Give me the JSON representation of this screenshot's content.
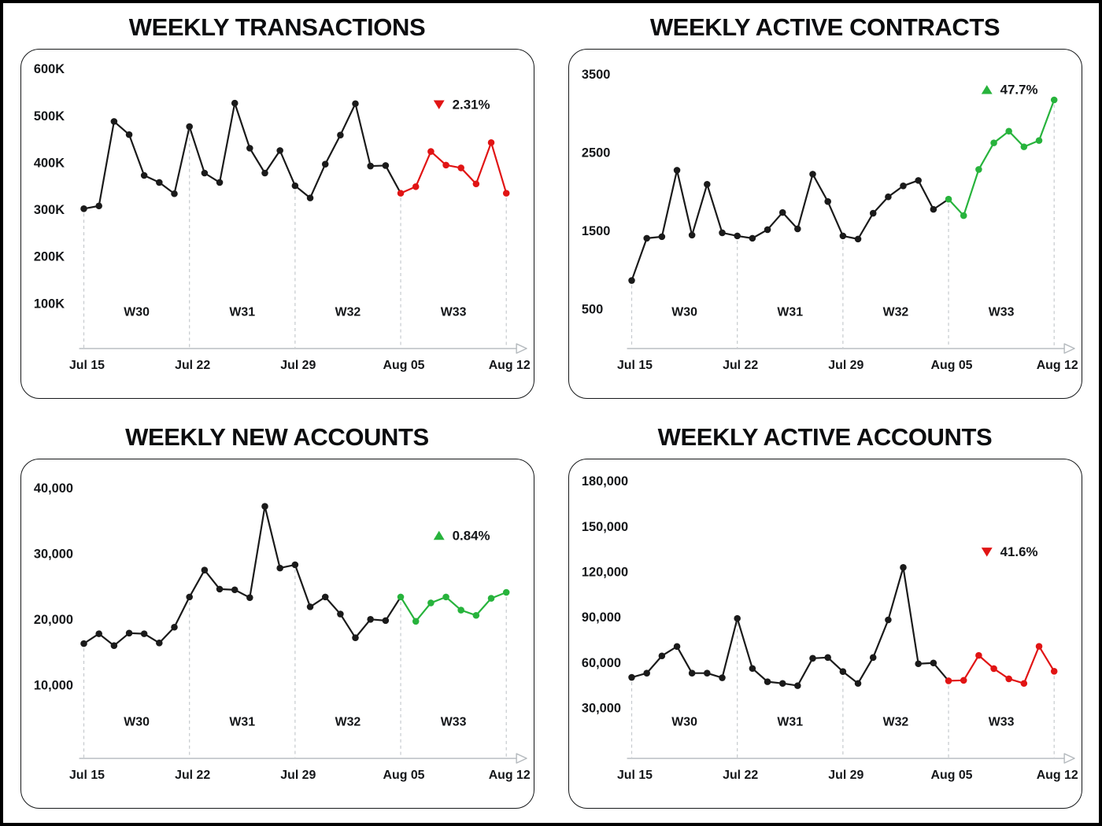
{
  "colors": {
    "positive": "#27b33c",
    "negative": "#e11414",
    "line": "#1a1a1a",
    "axis": "#b4b9bd",
    "divider": "#c5c9cd",
    "text": "#141619"
  },
  "chart_data": [
    {
      "type": "line",
      "title": "WEEKLY TRANSACTIONS",
      "trend": "down",
      "change_badge": {
        "direction": "down",
        "label": "2.31%"
      },
      "y_ticks": [
        {
          "label": "600K",
          "value": 600000
        },
        {
          "label": "500K",
          "value": 500000
        },
        {
          "label": "400K",
          "value": 400000
        },
        {
          "label": "300K",
          "value": 300000
        },
        {
          "label": "200K",
          "value": 200000
        },
        {
          "label": "100K",
          "value": 100000
        }
      ],
      "ylim": [
        100000,
        600000
      ],
      "x_tick_labels": [
        "Jul 15",
        "Jul 22",
        "Jul 29",
        "Aug 05",
        "Aug 12"
      ],
      "week_labels": [
        "W30",
        "W31",
        "W32",
        "W33"
      ],
      "highlight_week_index": 3,
      "highlight_from_index": 21,
      "values": [
        303000,
        309000,
        489000,
        461000,
        374000,
        359000,
        335000,
        478000,
        379000,
        359000,
        528000,
        432000,
        379000,
        427000,
        352000,
        326000,
        398000,
        460000,
        527000,
        394000,
        395000,
        336000,
        350000,
        425000,
        396000,
        390000,
        356000,
        444000,
        336000
      ]
    },
    {
      "type": "line",
      "title": "WEEKLY ACTIVE CONTRACTS",
      "trend": "up",
      "change_badge": {
        "direction": "up",
        "label": "47.7%"
      },
      "y_ticks": [
        {
          "label": "3500",
          "value": 3500
        },
        {
          "label": "2500",
          "value": 2500
        },
        {
          "label": "1500",
          "value": 1500
        },
        {
          "label": "500",
          "value": 500
        }
      ],
      "ylim": [
        500,
        3500
      ],
      "x_tick_labels": [
        "Jul 15",
        "Jul 22",
        "Jul 29",
        "Aug 05",
        "Aug 12"
      ],
      "week_labels": [
        "W30",
        "W31",
        "W32",
        "W33"
      ],
      "highlight_week_index": 3,
      "highlight_from_index": 21,
      "values": [
        870,
        1410,
        1430,
        2280,
        1450,
        2100,
        1480,
        1440,
        1410,
        1520,
        1740,
        1530,
        2230,
        1880,
        1440,
        1400,
        1730,
        1940,
        2080,
        2150,
        1780,
        1910,
        1700,
        2290,
        2630,
        2780,
        2580,
        2660,
        3180
      ]
    },
    {
      "type": "line",
      "title": "WEEKLY NEW ACCOUNTS",
      "trend": "up",
      "change_badge": {
        "direction": "up",
        "label": "0.84%"
      },
      "y_ticks": [
        {
          "label": "40,000",
          "value": 40000
        },
        {
          "label": "30,000",
          "value": 30000
        },
        {
          "label": "20,000",
          "value": 20000
        },
        {
          "label": "10,000",
          "value": 10000
        }
      ],
      "ylim": [
        10000,
        40000
      ],
      "x_tick_labels": [
        "Jul 15",
        "Jul 22",
        "Jul 29",
        "Aug 05",
        "Aug 12"
      ],
      "week_labels": [
        "W30",
        "W31",
        "W32",
        "W33"
      ],
      "highlight_week_index": 3,
      "highlight_from_index": 21,
      "values": [
        16400,
        17900,
        16100,
        18000,
        17900,
        16500,
        18900,
        23500,
        27600,
        24700,
        24600,
        23400,
        37300,
        27900,
        28400,
        22000,
        23500,
        20900,
        17300,
        20100,
        19900,
        23500,
        19800,
        22600,
        23500,
        21500,
        20700,
        23300,
        24200
      ]
    },
    {
      "type": "line",
      "title": "WEEKLY ACTIVE ACCOUNTS",
      "trend": "down",
      "change_badge": {
        "direction": "down",
        "label": "41.6%"
      },
      "y_ticks": [
        {
          "label": "180,000",
          "value": 180000
        },
        {
          "label": "150,000",
          "value": 150000
        },
        {
          "label": "120,000",
          "value": 120000
        },
        {
          "label": "90,000",
          "value": 90000
        },
        {
          "label": "60,000",
          "value": 60000
        },
        {
          "label": "30,000",
          "value": 30000
        }
      ],
      "ylim": [
        30000,
        180000
      ],
      "x_tick_labels": [
        "Jul 15",
        "Jul 22",
        "Jul 29",
        "Aug 05",
        "Aug 12"
      ],
      "week_labels": [
        "W30",
        "W31",
        "W32",
        "W33"
      ],
      "highlight_week_index": 3,
      "highlight_from_index": 21,
      "values": [
        50500,
        53300,
        64700,
        70900,
        53300,
        53300,
        50200,
        89500,
        56400,
        47600,
        46500,
        45000,
        63100,
        63600,
        54300,
        46500,
        63600,
        88500,
        123200,
        59500,
        60000,
        48200,
        48500,
        65000,
        56300,
        49500,
        46500,
        71000,
        54500
      ]
    }
  ]
}
